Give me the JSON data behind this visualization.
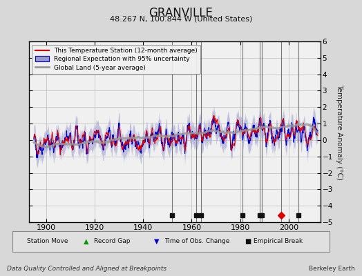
{
  "title": "GRANVILLE",
  "subtitle": "48.267 N, 100.844 W (United States)",
  "ylabel": "Temperature Anomaly (°C)",
  "xlabel_footer": "Data Quality Controlled and Aligned at Breakpoints",
  "footer_right": "Berkeley Earth",
  "ylim": [
    -5,
    6
  ],
  "xlim": [
    1893,
    2013
  ],
  "yticks": [
    -5,
    -4,
    -3,
    -2,
    -1,
    0,
    1,
    2,
    3,
    4,
    5,
    6
  ],
  "xticks": [
    1900,
    1920,
    1940,
    1960,
    1980,
    2000
  ],
  "bg_color": "#d8d8d8",
  "plot_bg_color": "#f0f0f0",
  "grid_color": "#bbbbbb",
  "red_line_color": "#dd0000",
  "blue_line_color": "#0000cc",
  "blue_fill_color": "#9999cc",
  "gray_line_color": "#999999",
  "vertical_line_color": "#444444",
  "empirical_breaks": [
    1952,
    1962,
    1964,
    1981,
    1988,
    1989,
    2004
  ],
  "station_move": [
    1997
  ],
  "random_seed": 42
}
